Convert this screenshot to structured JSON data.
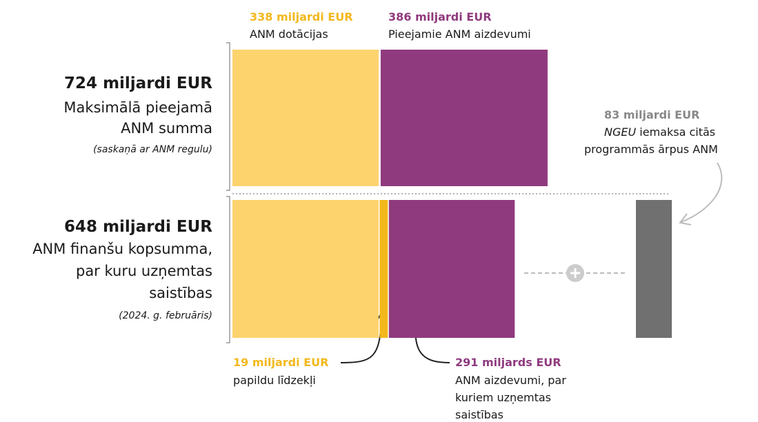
{
  "top": {
    "total": {
      "amount": "724 miljardi EUR",
      "lines": [
        "Maksimālā pieejamā",
        "ANM summa"
      ],
      "note": "(saskaņā ar ANM regulu)"
    },
    "segments": [
      {
        "value": 338,
        "amount": "338 miljardi EUR",
        "label": "ANM dotācijas",
        "color": "#fdd36e"
      },
      {
        "value": 386,
        "amount": "386 miljardi EUR",
        "label": "Pieejamie ANM aizdevumi",
        "color": "#8f3a7e"
      }
    ]
  },
  "bottom": {
    "total": {
      "amount": "648 miljardi EUR",
      "lines": [
        "ANM finanšu kopsumma,",
        "par kuru uzņemtas",
        "saistības"
      ],
      "note": "(2024. g. februāris)"
    },
    "segments": [
      {
        "value": 338,
        "color": "#fdd36e"
      },
      {
        "value": 19,
        "amount": "19 miljardi EUR",
        "lines": [
          "papildu līdzekļi"
        ],
        "color": "#f2b81c"
      },
      {
        "value": 291,
        "amount": "291 miljards EUR",
        "lines": [
          "ANM aizdevumi, par",
          "kuriem uzņemtas",
          "saistības"
        ],
        "color": "#8f3a7e"
      }
    ]
  },
  "ngeu": {
    "value": 83,
    "amount": "83 miljardi EUR",
    "term": "NGEU",
    "text": "iemaksa citās",
    "line2": "programmās ārpus ANM",
    "color": "#707070"
  }
}
